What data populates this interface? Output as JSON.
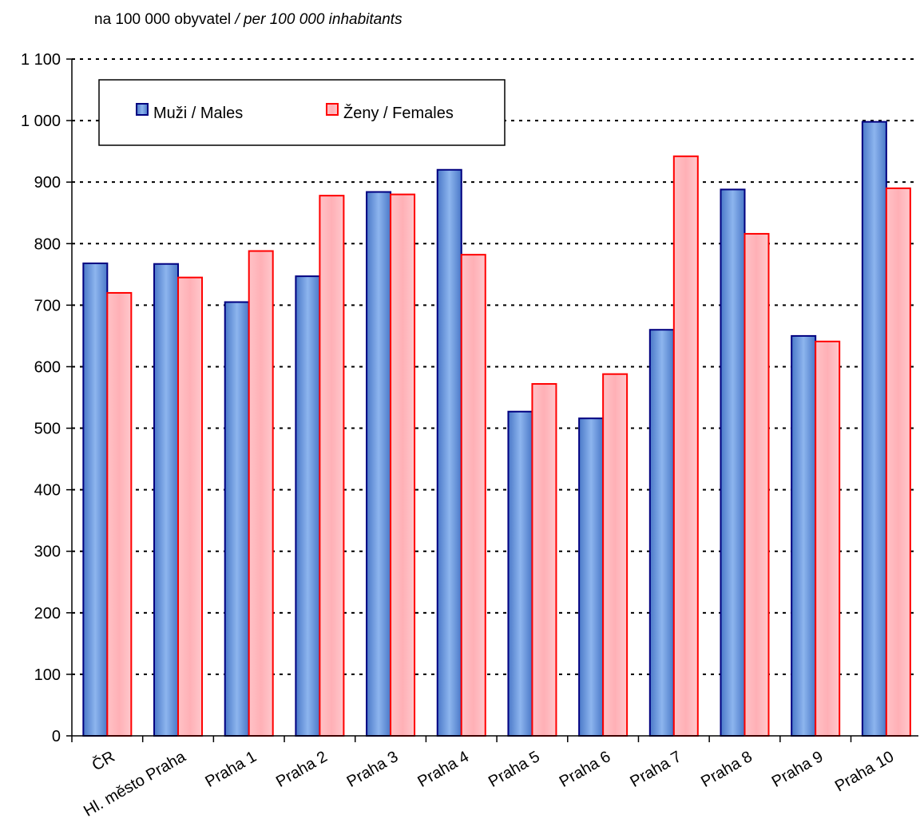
{
  "unit_label": {
    "cz": "na 100 000 obyvatel",
    "en": " / per 100 000 inhabitants"
  },
  "chart_data": {
    "type": "bar",
    "title": "",
    "xlabel": "",
    "ylabel": "",
    "ylim": [
      0,
      1100
    ],
    "yticks": [
      0,
      100,
      200,
      300,
      400,
      500,
      600,
      700,
      800,
      900,
      1000,
      1100
    ],
    "ytick_labels": [
      "0",
      "100",
      "200",
      "300",
      "400",
      "500",
      "600",
      "700",
      "800",
      "900",
      "1 000",
      "1 100"
    ],
    "grid": true,
    "legend_position": "top-left",
    "categories": [
      "ČR",
      "Hl. město Praha",
      "Praha 1",
      "Praha 2",
      "Praha 3",
      "Praha 4",
      "Praha 5",
      "Praha 6",
      "Praha 7",
      "Praha 8",
      "Praha 9",
      "Praha 10"
    ],
    "series": [
      {
        "name": "Muži / Males",
        "color": "#5f8fd8",
        "stroke": "#000080",
        "values": [
          768,
          767,
          705,
          747,
          884,
          920,
          527,
          516,
          660,
          888,
          650,
          998
        ]
      },
      {
        "name": "Ženy / Females",
        "color": "#ffb3b8",
        "stroke": "#ff0000",
        "values": [
          720,
          745,
          788,
          878,
          880,
          782,
          572,
          588,
          942,
          816,
          641,
          890
        ]
      }
    ]
  }
}
